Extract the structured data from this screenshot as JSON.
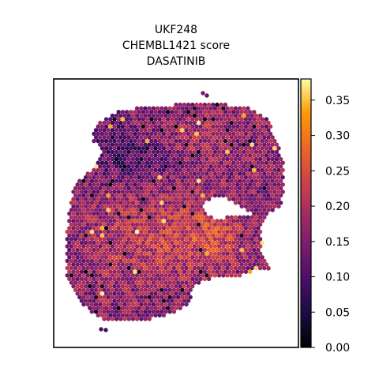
{
  "chart_data": {
    "type": "scatter",
    "title_lines": [
      "UKF248",
      "CHEMBL1421 score",
      "DASATINIB"
    ],
    "xlabel": "",
    "ylabel": "",
    "colorbar": {
      "colormap": "inferno",
      "range": [
        0.0,
        0.38
      ],
      "ticks": [
        0.0,
        0.05,
        0.1,
        0.15,
        0.2,
        0.25,
        0.3,
        0.35
      ],
      "tick_labels": [
        "0.00",
        "0.05",
        "0.10",
        "0.15",
        "0.20",
        "0.25",
        "0.30",
        "0.35"
      ]
    },
    "value_range": [
      0.0,
      0.38
    ],
    "typical_value": 0.17,
    "spot_regions": [
      {
        "region": "lower-left lobe",
        "level": "high",
        "mean": 0.21
      },
      {
        "region": "upper-left area",
        "level": "low",
        "mean": 0.09
      },
      {
        "region": "upper-right lobe",
        "level": "medium",
        "mean": 0.16
      },
      {
        "region": "center-right near hole",
        "level": "high",
        "mean": 0.24
      }
    ],
    "grid": false,
    "legend": "colorbar-right"
  }
}
